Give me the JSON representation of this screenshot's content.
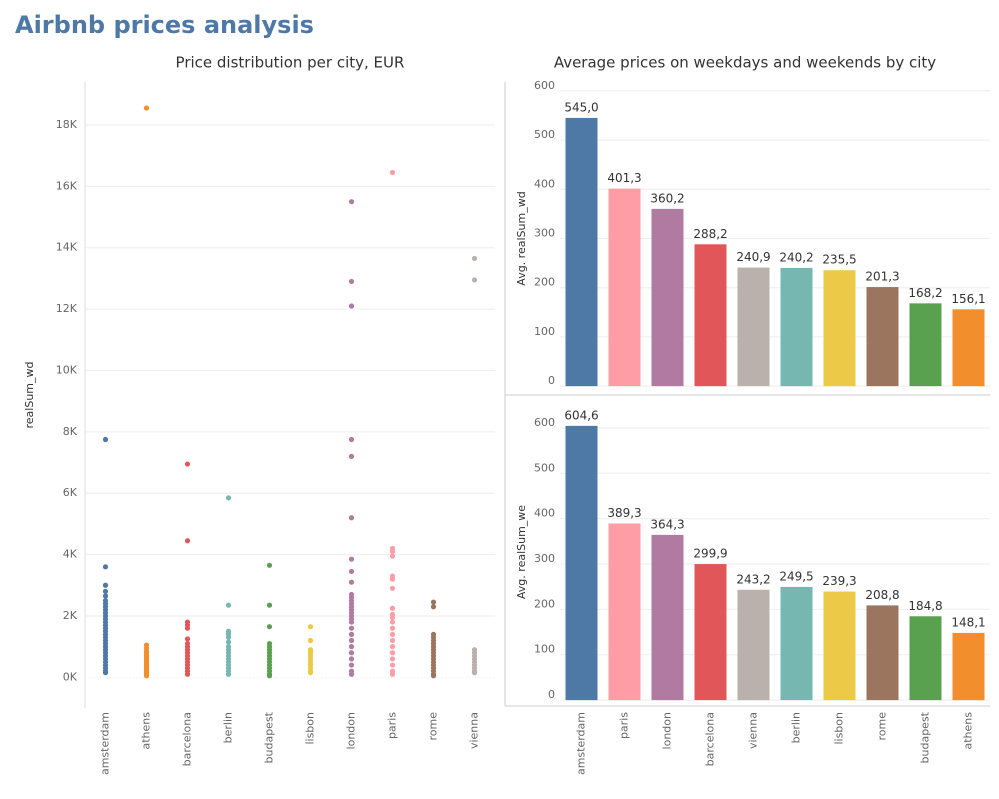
{
  "title": "Airbnb prices analysis",
  "chart_data": [
    {
      "type": "strip",
      "title": "Price distribution per city, EUR",
      "y_label": "realSum_wd",
      "categories": [
        "amsterdam",
        "athens",
        "barcelona",
        "berlin",
        "budapest",
        "lisbon",
        "london",
        "paris",
        "rome",
        "vienna"
      ],
      "colors": [
        "#4e79a7",
        "#f28e2b",
        "#e15759",
        "#76b7b2",
        "#59a14f",
        "#edc948",
        "#b07aa1",
        "#ff9da7",
        "#9c755f",
        "#bab0ac"
      ],
      "values": [
        [
          7750,
          3600,
          3000,
          2800,
          2650,
          2500,
          2400,
          2300,
          2200,
          2100,
          2000,
          1900,
          1800,
          1700,
          1600,
          1500,
          1400,
          1300,
          1200,
          1100,
          1000,
          900,
          800,
          700,
          600,
          500,
          400,
          300,
          200,
          150
        ],
        [
          18550,
          1050,
          950,
          850,
          800,
          750,
          700,
          650,
          600,
          550,
          500,
          450,
          400,
          350,
          300,
          250,
          200,
          150,
          100,
          50
        ],
        [
          6950,
          4450,
          1800,
          1700,
          1600,
          1250,
          1100,
          1000,
          900,
          800,
          700,
          600,
          500,
          400,
          300,
          200,
          100
        ],
        [
          5850,
          2350,
          1500,
          1450,
          1400,
          1300,
          1150,
          1000,
          900,
          800,
          700,
          600,
          500,
          400,
          300,
          200,
          100
        ],
        [
          3650,
          2350,
          1650,
          1100,
          1000,
          900,
          800,
          700,
          600,
          500,
          400,
          300,
          200,
          100,
          50
        ],
        [
          1650,
          1200,
          900,
          850,
          800,
          700,
          600,
          500,
          400,
          300,
          200,
          150
        ],
        [
          15500,
          12900,
          12100,
          7750,
          7200,
          5200,
          3850,
          3450,
          3100,
          2700,
          2600,
          2500,
          2400,
          2300,
          2200,
          2100,
          2000,
          1900,
          1800,
          1600,
          1400,
          1200,
          1000,
          800,
          600,
          400,
          200,
          100
        ],
        [
          16450,
          4200,
          4100,
          3950,
          3300,
          3200,
          2900,
          2250,
          2050,
          1950,
          1800,
          1600,
          1400,
          1200,
          1000,
          800,
          600,
          400,
          200,
          100
        ],
        [
          2450,
          2300,
          1400,
          1300,
          1200,
          1100,
          1000,
          900,
          800,
          700,
          600,
          500,
          400,
          300,
          200,
          100,
          50
        ],
        [
          13650,
          12950,
          900,
          800,
          700,
          600,
          500,
          400,
          300,
          200,
          150
        ]
      ],
      "ylim": [
        -1000,
        19400
      ],
      "yticks": [
        {
          "value": 0,
          "label": "0K"
        },
        {
          "value": 2000,
          "label": "2K"
        },
        {
          "value": 4000,
          "label": "4K"
        },
        {
          "value": 6000,
          "label": "6K"
        },
        {
          "value": 8000,
          "label": "8K"
        },
        {
          "value": 10000,
          "label": "10K"
        },
        {
          "value": 12000,
          "label": "12K"
        },
        {
          "value": 14000,
          "label": "14K"
        },
        {
          "value": 16000,
          "label": "16K"
        },
        {
          "value": 18000,
          "label": "18K"
        }
      ],
      "grid": true
    },
    {
      "type": "bar",
      "title": "Average prices on weekdays and weekends by city",
      "y_label": "Avg. realSum_wd",
      "values": [
        545.0,
        401.3,
        360.2,
        288.2,
        240.9,
        240.2,
        235.5,
        201.3,
        168.2,
        156.1
      ],
      "value_labels": [
        "545,0",
        "401,3",
        "360,2",
        "288,2",
        "240,9",
        "240,2",
        "235,5",
        "201,3",
        "168,2",
        "156,1"
      ],
      "colors": [
        "#4e79a7",
        "#ff9da7",
        "#b07aa1",
        "#e15759",
        "#bab0ac",
        "#76b7b2",
        "#edc948",
        "#9c755f",
        "#59a14f",
        "#f28e2b"
      ],
      "ylim": [
        -18,
        618
      ],
      "yticks": [
        0,
        100,
        200,
        300,
        400,
        500,
        600
      ],
      "grid": true
    },
    {
      "type": "bar",
      "y_label": "Avg. realSum_we",
      "categories": [
        "amsterdam",
        "paris",
        "london",
        "barcelona",
        "vienna",
        "berlin",
        "lisbon",
        "rome",
        "budapest",
        "athens"
      ],
      "values": [
        604.6,
        389.3,
        364.3,
        299.9,
        243.2,
        249.5,
        239.3,
        208.8,
        184.8,
        148.1
      ],
      "value_labels": [
        "604,6",
        "389,3",
        "364,3",
        "299,9",
        "243,2",
        "249,5",
        "239,3",
        "208,8",
        "184,8",
        "148,1"
      ],
      "colors": [
        "#4e79a7",
        "#ff9da7",
        "#b07aa1",
        "#e15759",
        "#bab0ac",
        "#76b7b2",
        "#edc948",
        "#9c755f",
        "#59a14f",
        "#f28e2b"
      ],
      "ylim": [
        -13,
        666
      ],
      "yticks": [
        0,
        100,
        200,
        300,
        400,
        500,
        600
      ],
      "grid": true
    }
  ]
}
